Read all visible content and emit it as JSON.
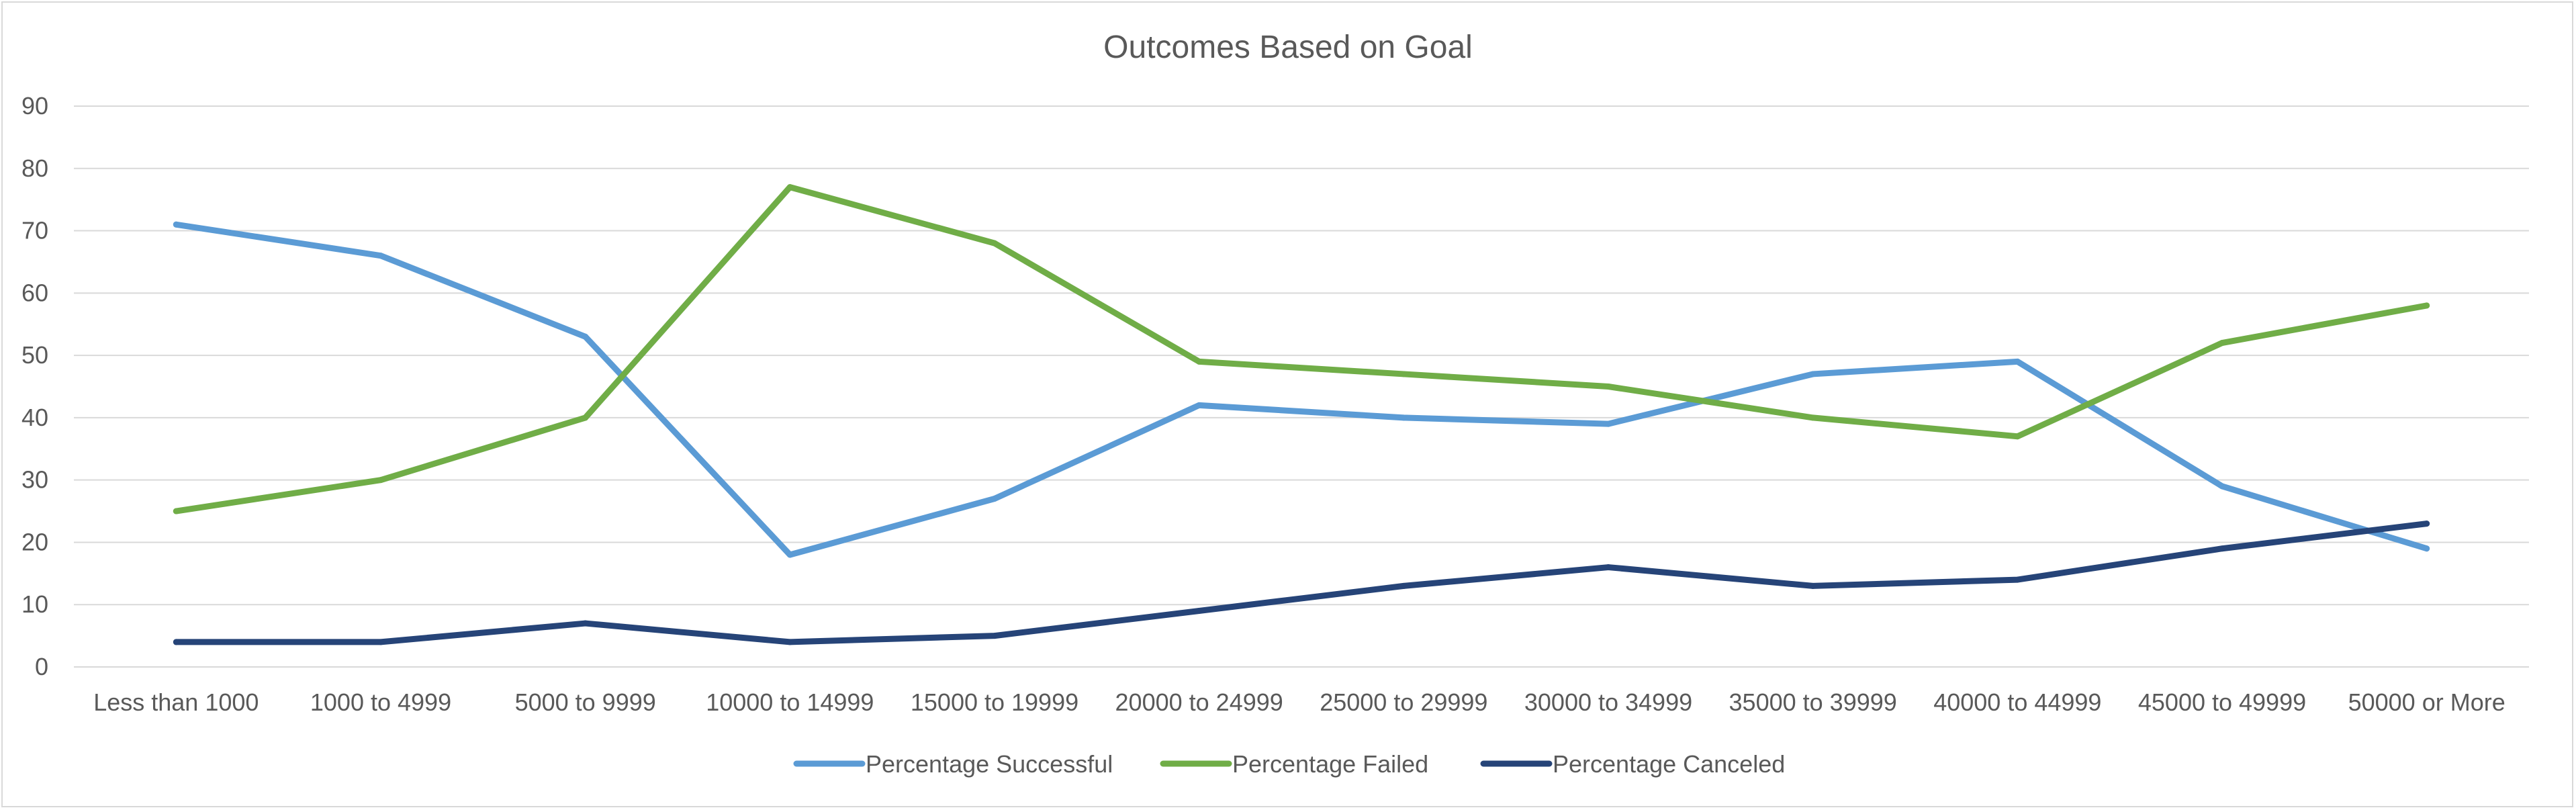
{
  "chart_data": {
    "type": "line",
    "title": "Outcomes Based on Goal",
    "xlabel": "",
    "ylabel": "",
    "ylim": [
      0,
      90
    ],
    "yticks": [
      0,
      10,
      20,
      30,
      40,
      50,
      60,
      70,
      80,
      90
    ],
    "grid": true,
    "legend_position": "bottom",
    "categories": [
      "Less than 1000",
      "1000 to 4999",
      "5000 to 9999",
      "10000 to 14999",
      "15000 to 19999",
      "20000 to 24999",
      "25000 to 29999",
      "30000 to 34999",
      "35000 to 39999",
      "40000 to 44999",
      "45000 to 49999",
      "50000 or More"
    ],
    "series": [
      {
        "name": "Percentage Successful",
        "color": "#5b9bd5",
        "values": [
          71,
          66,
          53,
          18,
          27,
          42,
          40,
          39,
          47,
          49,
          29,
          19
        ]
      },
      {
        "name": "Percentage Failed",
        "color": "#70ad47",
        "values": [
          25,
          30,
          40,
          77,
          68,
          49,
          47,
          45,
          40,
          37,
          52,
          58
        ]
      },
      {
        "name": "Percentage Canceled",
        "color": "#264478",
        "values": [
          4,
          4,
          7,
          4,
          5,
          9,
          13,
          16,
          13,
          14,
          19,
          23
        ]
      }
    ]
  }
}
